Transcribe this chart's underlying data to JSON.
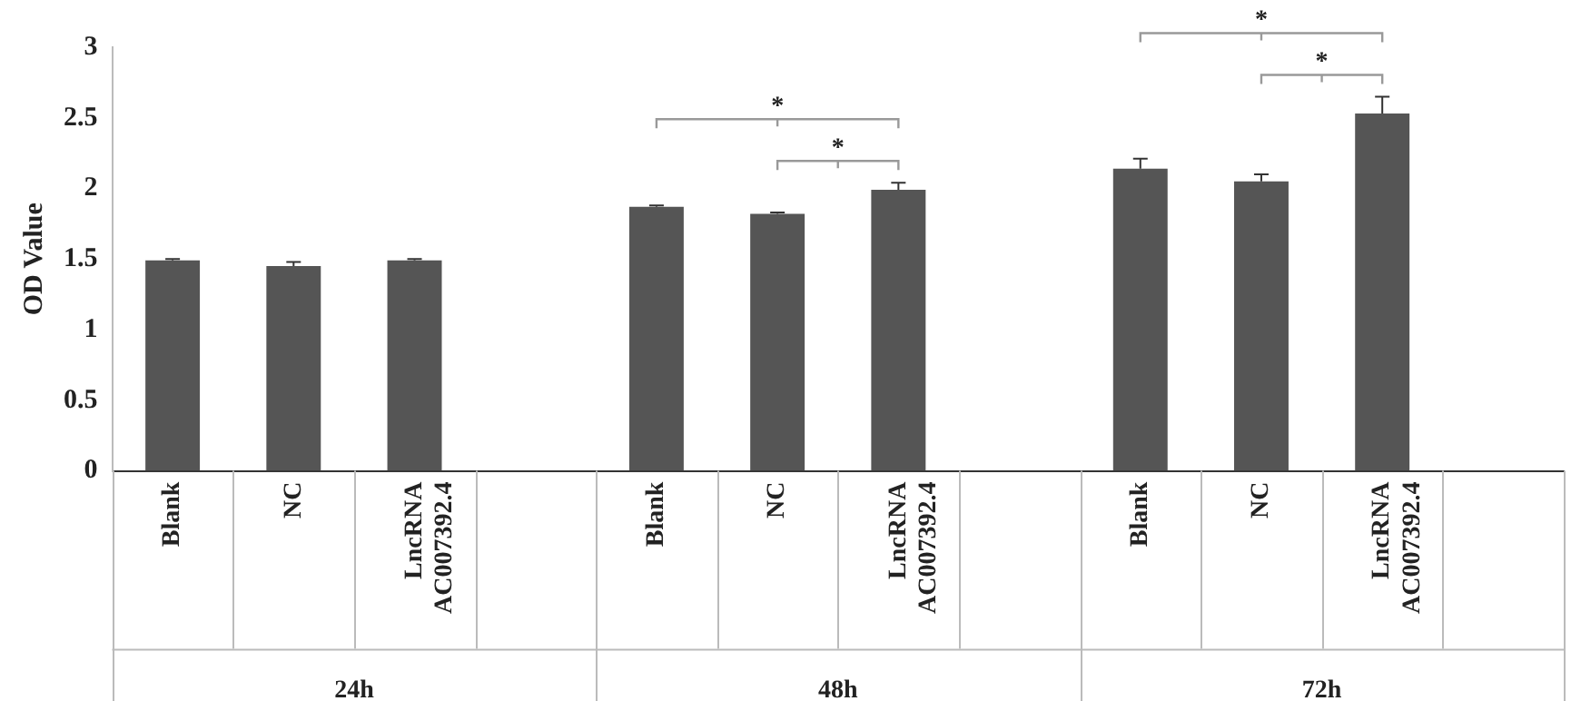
{
  "chart_data": {
    "type": "bar",
    "ylabel": "OD Value",
    "categories": [
      "Blank",
      "NC",
      "LncRNA AC007392.4",
      null,
      "Blank",
      "NC",
      "LncRNA AC007392.4",
      null,
      "Blank",
      "NC",
      "LncRNA AC007392.4",
      null
    ],
    "values": [
      1.49,
      1.45,
      1.49,
      null,
      1.87,
      1.82,
      1.99,
      null,
      2.14,
      2.05,
      2.53,
      null
    ],
    "errors": [
      0.01,
      0.03,
      0.01,
      null,
      0.01,
      0.01,
      0.05,
      null,
      0.07,
      0.05,
      0.12,
      null
    ],
    "color": "#555555",
    "ylim": [
      0,
      3
    ],
    "yticks": [
      0,
      0.5,
      1,
      1.5,
      2,
      2.5,
      3
    ],
    "grid": false,
    "legend": false,
    "annotations": [
      "24h",
      "48h",
      "72h",
      "*",
      "*",
      "*",
      "*"
    ]
  }
}
